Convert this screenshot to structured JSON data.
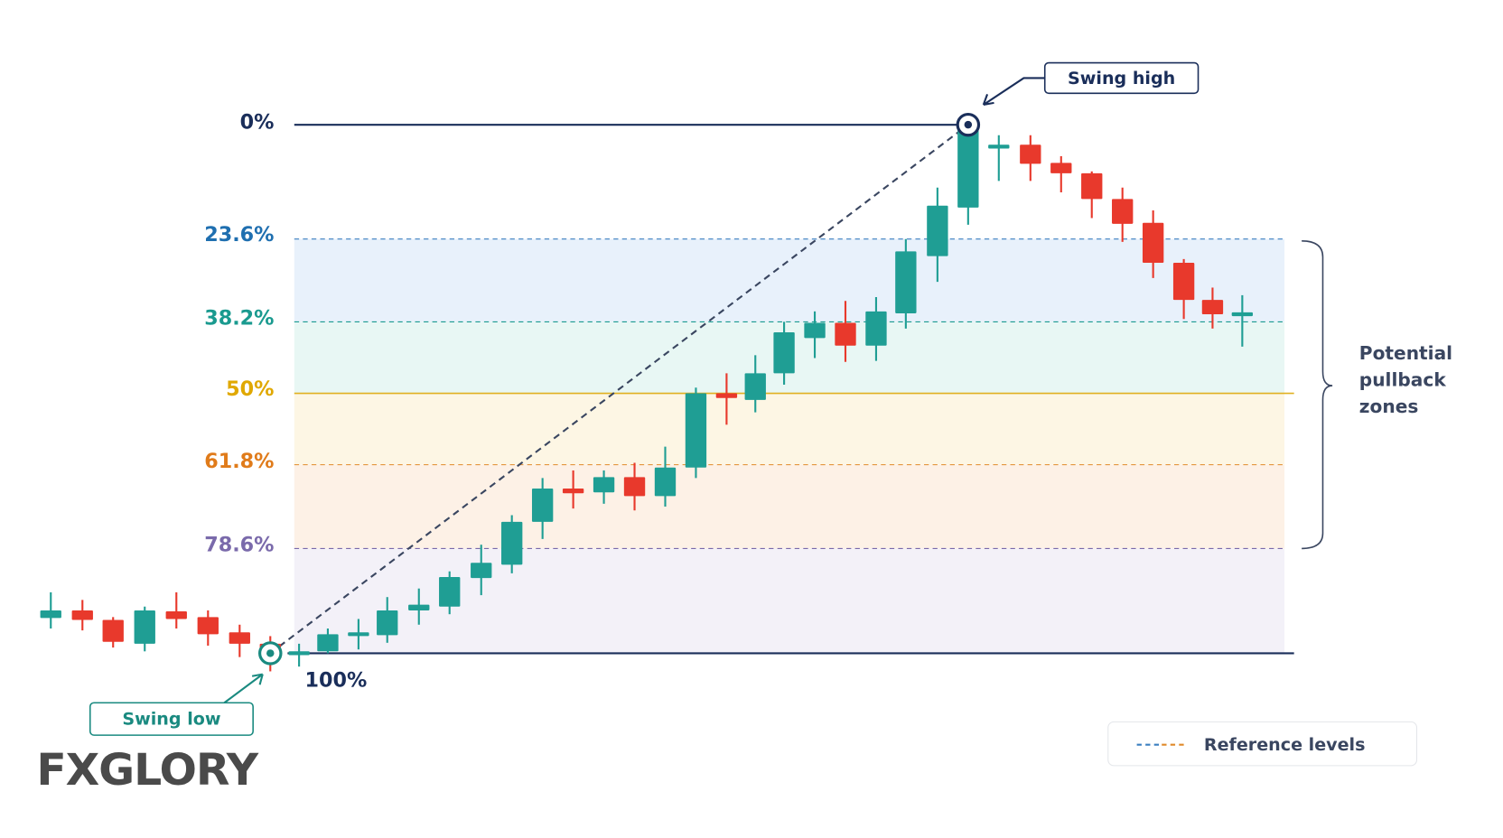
{
  "levels": [
    {
      "label": "0%"
    },
    {
      "label": "23.6%"
    },
    {
      "label": "38.2%"
    },
    {
      "label": "50%"
    },
    {
      "label": "61.8%"
    },
    {
      "label": "78.6%"
    },
    {
      "label": "100%"
    }
  ],
  "annotations": {
    "swing_high": "Swing high",
    "swing_low": "Swing low",
    "zones": [
      "Potential",
      "pullback",
      "zones"
    ]
  },
  "legend": {
    "label": "Reference levels"
  },
  "logo": "FXGLORY"
}
